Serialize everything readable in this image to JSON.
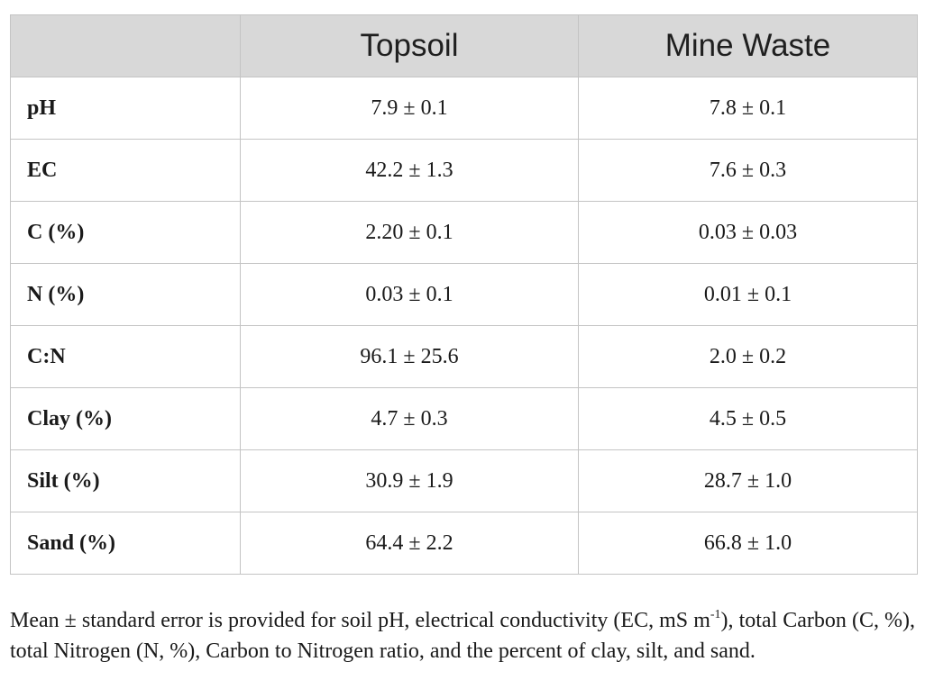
{
  "table": {
    "headers": [
      "",
      "Topsoil",
      "Mine Waste"
    ],
    "rows": [
      {
        "label": "pH",
        "topsoil": "7.9 ± 0.1",
        "mine_waste": "7.8 ± 0.1"
      },
      {
        "label": "EC",
        "topsoil": "42.2 ± 1.3",
        "mine_waste": "7.6 ± 0.3"
      },
      {
        "label": "C (%)",
        "topsoil": "2.20 ± 0.1",
        "mine_waste": "0.03 ± 0.03"
      },
      {
        "label": "N (%)",
        "topsoil": "0.03 ± 0.1",
        "mine_waste": "0.01 ± 0.1"
      },
      {
        "label": "C:N",
        "topsoil": "96.1 ± 25.6",
        "mine_waste": "2.0 ± 0.2"
      },
      {
        "label": "Clay (%)",
        "topsoil": "4.7 ± 0.3",
        "mine_waste": "4.5 ± 0.5"
      },
      {
        "label": "Silt (%)",
        "topsoil": "30.9 ± 1.9",
        "mine_waste": "28.7 ± 1.0"
      },
      {
        "label": "Sand (%)",
        "topsoil": "64.4 ± 2.2",
        "mine_waste": "66.8 ± 1.0"
      }
    ]
  },
  "caption": {
    "part1": "Mean ± standard error is provided for soil pH, electrical conductivity (EC, mS m",
    "sup": "-1",
    "part2": "), total Carbon (C, %), total Nitrogen (N, %), Carbon to Nitrogen ratio, and the percent of clay, silt, and sand."
  }
}
